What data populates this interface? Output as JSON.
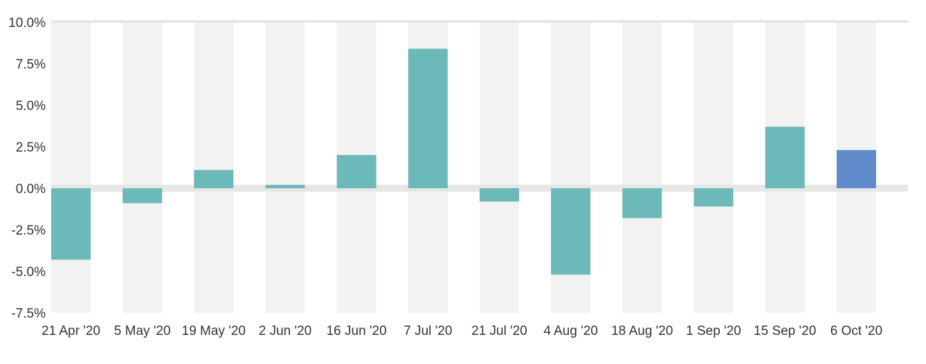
{
  "chart_data": {
    "type": "bar",
    "title": "",
    "xlabel": "",
    "ylabel": "",
    "categories": [
      "21 Apr '20",
      "5 May '20",
      "19 May '20",
      "2 Jun '20",
      "16 Jun '20",
      "7 Jul '20",
      "21 Jul '20",
      "4 Aug '20",
      "18 Aug '20",
      "1 Sep '20",
      "15 Sep '20",
      "6 Oct '20"
    ],
    "values": [
      -4.3,
      -0.9,
      1.1,
      0.2,
      2.0,
      8.4,
      -0.8,
      -5.2,
      -1.8,
      -1.1,
      3.7,
      2.3
    ],
    "ylim": [
      -7.5,
      10.0
    ],
    "yticks": [
      10.0,
      7.5,
      5.0,
      2.5,
      0.0,
      -2.5,
      -5.0,
      -7.5
    ],
    "ytick_labels": [
      "10.0%",
      "7.5%",
      "5.0%",
      "2.5%",
      "0.0%",
      "-2.5%",
      "-5.0%",
      "-7.5%"
    ],
    "grid": "alternating column bands",
    "legend": "none",
    "colors": {
      "bar": "#6cb9b9",
      "highlight_bar": "#5f8bcb",
      "band": "#f2f2f2",
      "zero_line": "#e6e6e6",
      "text": "#333333"
    },
    "highlight_index": 11
  }
}
